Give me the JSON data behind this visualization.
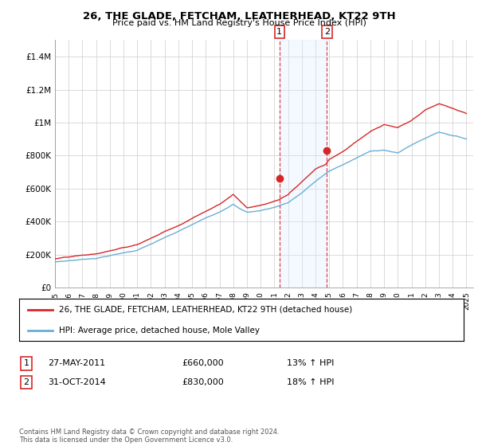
{
  "title": "26, THE GLADE, FETCHAM, LEATHERHEAD, KT22 9TH",
  "subtitle": "Price paid vs. HM Land Registry's House Price Index (HPI)",
  "legend_line1": "26, THE GLADE, FETCHAM, LEATHERHEAD, KT22 9TH (detached house)",
  "legend_line2": "HPI: Average price, detached house, Mole Valley",
  "footnote": "Contains HM Land Registry data © Crown copyright and database right 2024.\nThis data is licensed under the Open Government Licence v3.0.",
  "transaction1_date": "27-MAY-2011",
  "transaction1_price": "£660,000",
  "transaction1_hpi": "13% ↑ HPI",
  "transaction1_value": 660000,
  "transaction1_year": 2011.37,
  "transaction2_date": "31-OCT-2014",
  "transaction2_price": "£830,000",
  "transaction2_hpi": "18% ↑ HPI",
  "transaction2_value": 830000,
  "transaction2_year": 2014.83,
  "hpi_color": "#6baed6",
  "price_color": "#d62728",
  "shading_color": "#ddeeff",
  "vline_color": "#d62728",
  "grid_color": "#cccccc",
  "yticks": [
    0,
    200000,
    400000,
    600000,
    800000,
    1000000,
    1200000,
    1400000
  ],
  "ytick_labels": [
    "£0",
    "£200K",
    "£400K",
    "£600K",
    "£800K",
    "£1M",
    "£1.2M",
    "£1.4M"
  ],
  "ylim_max": 1500000,
  "xlim_min": 1995,
  "xlim_max": 2025.5
}
